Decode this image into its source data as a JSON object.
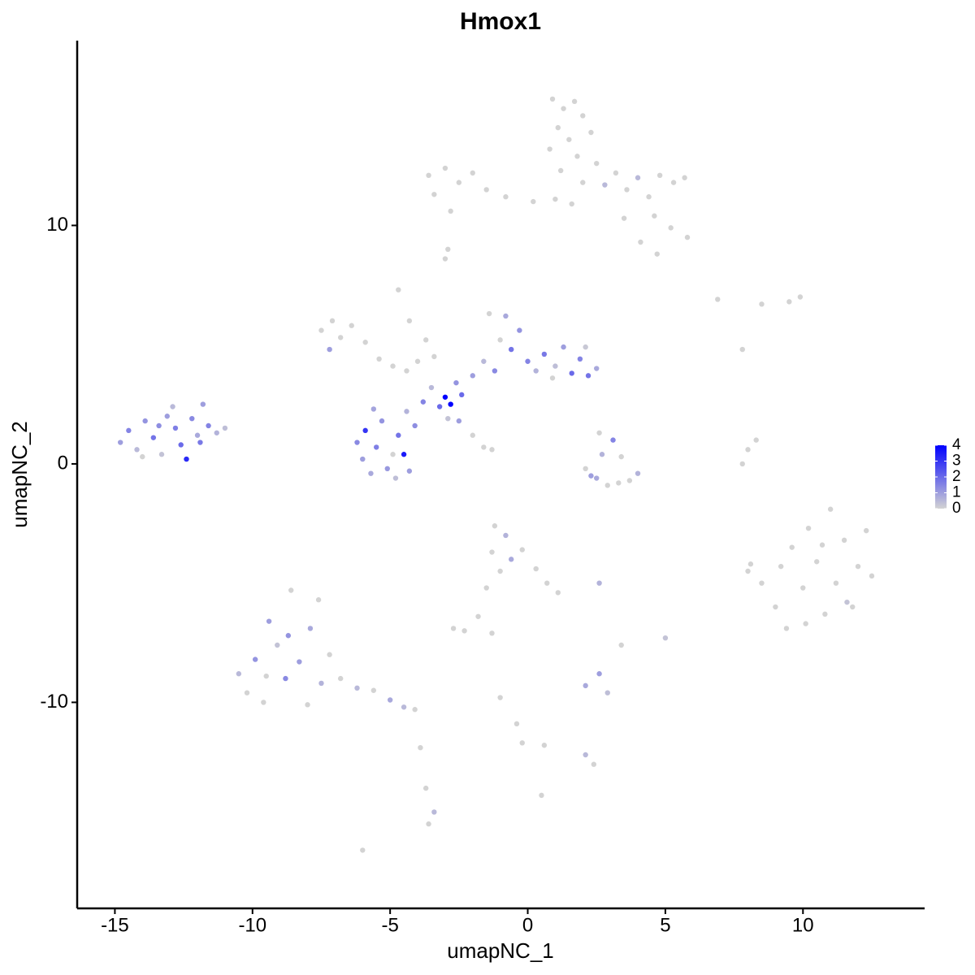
{
  "chart_data": {
    "type": "scatter",
    "title": "Hmox1",
    "x_label": "umapNC_1",
    "y_label": "umapNC_2",
    "xlim": [
      -16.37,
      14.42
    ],
    "ylim": [
      -18.64,
      17.75
    ],
    "xticks": [
      -15,
      -10,
      -5,
      0,
      5,
      10
    ],
    "yticks": [
      -10,
      0,
      10
    ],
    "colorbar": {
      "colors": [
        "#d3d3d3",
        "#0000ff"
      ],
      "lim": [
        0,
        4
      ],
      "ticks": [
        0,
        1,
        2,
        3,
        4
      ]
    },
    "x": [
      -14.8,
      -14.5,
      -14.2,
      -13.9,
      -13.6,
      -13.3,
      -13.1,
      -12.8,
      -12.6,
      -12.4,
      -12.2,
      -12.0,
      -11.8,
      -11.6,
      -11.3,
      -11.0,
      -12.9,
      -14.0,
      -13.4,
      -11.9,
      -6.2,
      -6.0,
      -5.9,
      -5.7,
      -5.5,
      -5.3,
      -5.1,
      -4.9,
      -4.7,
      -4.5,
      -4.3,
      -4.1,
      -4.4,
      -5.6,
      -4.8,
      -3.8,
      -3.5,
      -3.2,
      -3.0,
      -2.8,
      -2.6,
      -2.4,
      -2.9,
      -2.5,
      -2.0,
      -1.6,
      -1.3,
      -2.0,
      -1.6,
      -1.2,
      -1.0,
      -0.8,
      -0.6,
      -0.3,
      0.0,
      0.3,
      0.6,
      1.0,
      1.3,
      1.6,
      1.9,
      2.2,
      2.5,
      2.1,
      -1.4,
      0.9,
      -7.5,
      -7.1,
      -6.8,
      -7.2,
      -6.4,
      -5.9,
      -5.4,
      -4.9,
      -4.4,
      -4.0,
      -3.4,
      -4.7,
      -4.3,
      -3.7,
      0.9,
      1.3,
      1.7,
      2.0,
      1.1,
      1.5,
      2.3,
      0.8,
      1.8,
      2.5,
      1.2,
      2.0,
      1.0,
      1.6,
      2.8,
      3.2,
      3.6,
      4.0,
      4.4,
      4.8,
      5.3,
      5.7,
      4.6,
      5.2,
      5.8,
      4.1,
      4.7,
      3.5,
      -3.6,
      -3.0,
      -2.5,
      -2.0,
      -1.5,
      -0.8,
      0.2,
      -3.4,
      -2.8,
      -3.0,
      2.1,
      2.5,
      2.9,
      3.3,
      3.7,
      4.0,
      2.7,
      3.1,
      2.6,
      3.4,
      2.3,
      7.8,
      8.0,
      8.3,
      7.8,
      6.9,
      8.5,
      9.5,
      9.9,
      8.0,
      8.5,
      9.0,
      9.4,
      9.6,
      10.0,
      10.2,
      10.5,
      10.8,
      11.0,
      11.2,
      11.5,
      11.8,
      12.0,
      12.3,
      12.5,
      9.2,
      10.7,
      11.6,
      10.1,
      -10.5,
      -10.2,
      -9.9,
      -9.6,
      -9.4,
      -9.1,
      -8.8,
      -8.6,
      -8.3,
      -8.0,
      -7.9,
      -7.6,
      -7.5,
      -7.2,
      -8.7,
      -9.5,
      -6.8,
      -6.2,
      -5.6,
      -5.0,
      -4.5,
      -4.1,
      -1.2,
      -0.8,
      -1.3,
      -0.6,
      -1.0,
      -0.2,
      0.3,
      0.7,
      1.1,
      -1.5,
      -1.8,
      -2.7,
      -2.3,
      -1.3,
      2.1,
      2.6,
      2.9,
      2.6,
      3.4,
      5.0,
      -1.0,
      -0.4,
      -0.2,
      0.6,
      2.1,
      2.4,
      -3.9,
      -3.7,
      -3.4,
      -3.6,
      0.5,
      -6.0,
      -2.9,
      8.1
    ],
    "y": [
      0.9,
      1.4,
      0.6,
      1.8,
      1.1,
      0.4,
      2.0,
      1.5,
      0.8,
      0.2,
      1.9,
      1.2,
      2.5,
      1.6,
      1.3,
      1.5,
      2.4,
      0.3,
      1.6,
      0.9,
      0.9,
      0.2,
      1.4,
      -0.4,
      0.7,
      1.8,
      -0.2,
      0.4,
      1.2,
      0.4,
      -0.3,
      1.6,
      2.2,
      2.3,
      -0.6,
      2.6,
      3.2,
      2.4,
      2.8,
      2.5,
      3.4,
      2.9,
      1.9,
      1.8,
      1.2,
      0.7,
      0.6,
      3.7,
      4.3,
      3.9,
      5.2,
      6.2,
      4.8,
      5.6,
      4.3,
      3.9,
      4.6,
      4.1,
      4.9,
      3.8,
      4.4,
      3.7,
      4.0,
      4.9,
      6.3,
      3.6,
      5.6,
      6.0,
      5.3,
      4.8,
      5.8,
      5.1,
      4.4,
      4.1,
      3.9,
      4.3,
      4.5,
      7.3,
      6.0,
      5.2,
      15.3,
      14.9,
      15.2,
      14.6,
      14.1,
      13.6,
      13.9,
      13.2,
      12.9,
      12.6,
      12.3,
      11.8,
      11.1,
      10.9,
      11.7,
      12.2,
      11.5,
      12.0,
      11.2,
      12.1,
      11.8,
      12.0,
      10.4,
      9.9,
      9.5,
      9.3,
      8.8,
      10.3,
      12.1,
      12.4,
      11.8,
      12.2,
      11.5,
      11.2,
      11.0,
      11.3,
      10.6,
      8.6,
      -0.2,
      -0.6,
      -0.9,
      -0.8,
      -0.7,
      -0.4,
      0.4,
      1.0,
      1.3,
      0.3,
      -0.5,
      0.0,
      0.6,
      1.0,
      4.8,
      6.9,
      6.7,
      6.8,
      7.0,
      -4.5,
      -5.0,
      -6.0,
      -6.9,
      -3.5,
      -5.2,
      -2.7,
      -4.1,
      -6.3,
      -1.9,
      -5.0,
      -3.2,
      -6.0,
      -4.3,
      -2.8,
      -4.7,
      -4.3,
      -3.4,
      -5.8,
      -6.7,
      -8.8,
      -9.6,
      -8.2,
      -10.0,
      -6.6,
      -7.6,
      -9.0,
      -5.3,
      -8.3,
      -10.1,
      -6.9,
      -5.7,
      -9.2,
      -8.0,
      -7.2,
      -8.9,
      -9.0,
      -9.4,
      -9.5,
      -9.9,
      -10.2,
      -10.3,
      -2.6,
      -3.0,
      -3.7,
      -4.0,
      -4.5,
      -3.6,
      -4.4,
      -5.0,
      -5.4,
      -5.2,
      -6.4,
      -6.9,
      -7.0,
      -7.1,
      -9.3,
      -8.8,
      -9.6,
      -5.0,
      -7.6,
      -7.3,
      -9.8,
      -10.9,
      -11.7,
      -11.8,
      -12.2,
      -12.6,
      -11.9,
      -13.6,
      -14.6,
      -15.1,
      -13.9,
      -16.2,
      9.0,
      -4.2
    ],
    "values": [
      1,
      1.5,
      0.5,
      1.2,
      1.8,
      0.3,
      1,
      1.6,
      2,
      3.2,
      1.4,
      0.8,
      1,
      1.5,
      0.6,
      0.4,
      0.5,
      0,
      1.3,
      1.7,
      1.4,
      1,
      3,
      0.8,
      1.6,
      1.2,
      1.1,
      0,
      1.8,
      3.5,
      1,
      1.3,
      0.6,
      0.9,
      0.4,
      1.5,
      0.5,
      2,
      4,
      4,
      1.2,
      2,
      0.3,
      1,
      0,
      0,
      0,
      1,
      0.5,
      1.4,
      0,
      0.8,
      1.8,
      1.2,
      1.5,
      0.6,
      1.7,
      0.4,
      1,
      2,
      1.5,
      1.8,
      0.8,
      0.2,
      0,
      0,
      0,
      0,
      0,
      1,
      0,
      0,
      0,
      0,
      0,
      0,
      0,
      0,
      0,
      0,
      0,
      0,
      0,
      0,
      0,
      0,
      0,
      0,
      0,
      0,
      0,
      0,
      0,
      0,
      0.5,
      0,
      0,
      0.5,
      0,
      0,
      0,
      0,
      0,
      0,
      0,
      0,
      0,
      0,
      0,
      0,
      0,
      0,
      0,
      0,
      0,
      0,
      0,
      0,
      0,
      0.8,
      0,
      0,
      0,
      0.6,
      0.6,
      1.5,
      0,
      0,
      1,
      0,
      0,
      0,
      0,
      0,
      0,
      0,
      0,
      0,
      0,
      0,
      0,
      0,
      0,
      0,
      0,
      0,
      0,
      0,
      0,
      0,
      0,
      0,
      0,
      0,
      0,
      0.3,
      0,
      0.5,
      0,
      1.2,
      0,
      1,
      0.3,
      1.4,
      0,
      1,
      0,
      0.8,
      0,
      0.6,
      0,
      1.2,
      0,
      0,
      0.5,
      0,
      0.8,
      0.5,
      0,
      0,
      0.6,
      0,
      0.8,
      0,
      0,
      0,
      0,
      0,
      0,
      0,
      0,
      0,
      0,
      0.8,
      1,
      0.4,
      0.6,
      0,
      0.3,
      0,
      0,
      0,
      0,
      0.5,
      0,
      0,
      0,
      0.5,
      0,
      0,
      0,
      0,
      0
    ]
  }
}
